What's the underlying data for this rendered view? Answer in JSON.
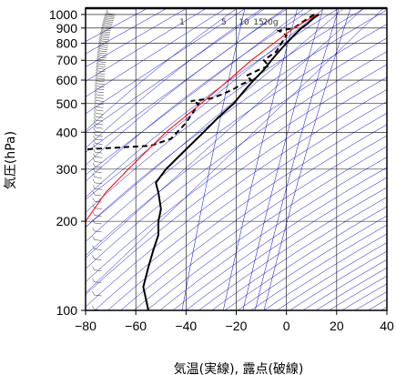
{
  "chart_data": {
    "type": "line",
    "title": "",
    "xlabel": "気温(実線), 露点(破線)",
    "ylabel": "気圧(hPa)",
    "xlim": [
      -80,
      40
    ],
    "ylim_pressure": [
      1050,
      100
    ],
    "y_scale": "log",
    "x_ticks": [
      "−80",
      "−60",
      "−40",
      "−20",
      "0",
      "20",
      "40"
    ],
    "x_tick_values": [
      -80,
      -60,
      -40,
      -20,
      0,
      20,
      40
    ],
    "y_ticks": [
      "100",
      "200",
      "300",
      "400",
      "500",
      "600",
      "700",
      "800",
      "900",
      "1000"
    ],
    "y_tick_values": [
      100,
      200,
      300,
      400,
      500,
      600,
      700,
      800,
      900,
      1000
    ],
    "mixing_ratio_labels": [
      "1",
      "5",
      "10",
      "15",
      "20g"
    ],
    "mixing_ratio_values": [
      1,
      5,
      10,
      15,
      20
    ],
    "grid": true,
    "colors": {
      "temperature": "#000000",
      "dewpoint": "#000000",
      "reference_line": "#ff0000",
      "adiabats": "#0000cc",
      "grid": "#000000"
    },
    "series": [
      {
        "role": "temperature",
        "points": [
          {
            "p": 1000,
            "t": 13
          },
          {
            "p": 975,
            "t": 11
          },
          {
            "p": 950,
            "t": 9.5
          },
          {
            "p": 925,
            "t": 8
          },
          {
            "p": 900,
            "t": 6
          },
          {
            "p": 850,
            "t": 3
          },
          {
            "p": 800,
            "t": 0
          },
          {
            "p": 750,
            "t": -3
          },
          {
            "p": 700,
            "t": -6
          },
          {
            "p": 650,
            "t": -9
          },
          {
            "p": 600,
            "t": -13
          },
          {
            "p": 550,
            "t": -17
          },
          {
            "p": 500,
            "t": -21
          },
          {
            "p": 450,
            "t": -27
          },
          {
            "p": 400,
            "t": -33
          },
          {
            "p": 350,
            "t": -40
          },
          {
            "p": 300,
            "t": -48
          },
          {
            "p": 270,
            "t": -52
          },
          {
            "p": 250,
            "t": -51
          },
          {
            "p": 220,
            "t": -50
          },
          {
            "p": 200,
            "t": -51
          },
          {
            "p": 180,
            "t": -51
          },
          {
            "p": 160,
            "t": -53
          },
          {
            "p": 140,
            "t": -55
          },
          {
            "p": 120,
            "t": -57
          },
          {
            "p": 100,
            "t": -55
          }
        ]
      },
      {
        "role": "dewpoint",
        "points": [
          {
            "p": 1000,
            "t": 11
          },
          {
            "p": 975,
            "t": 9
          },
          {
            "p": 950,
            "t": 7
          },
          {
            "p": 925,
            "t": 5
          },
          {
            "p": 900,
            "t": 3
          },
          {
            "p": 880,
            "t": -3
          },
          {
            "p": 850,
            "t": 0
          },
          {
            "p": 800,
            "t": -2
          },
          {
            "p": 750,
            "t": -4
          },
          {
            "p": 700,
            "t": -9
          },
          {
            "p": 670,
            "t": -7
          },
          {
            "p": 650,
            "t": -11
          },
          {
            "p": 620,
            "t": -16
          },
          {
            "p": 600,
            "t": -14
          },
          {
            "p": 580,
            "t": -18
          },
          {
            "p": 560,
            "t": -21
          },
          {
            "p": 540,
            "t": -25
          },
          {
            "p": 520,
            "t": -30
          },
          {
            "p": 510,
            "t": -38
          },
          {
            "p": 500,
            "t": -35
          },
          {
            "p": 470,
            "t": -37
          },
          {
            "p": 430,
            "t": -40
          },
          {
            "p": 380,
            "t": -46
          },
          {
            "p": 360,
            "t": -54
          },
          {
            "p": 350,
            "t": -80
          }
        ]
      },
      {
        "role": "reference_line",
        "points": [
          {
            "p": 1000,
            "t": 12
          },
          {
            "p": 900,
            "t": 3
          },
          {
            "p": 800,
            "t": -5
          },
          {
            "p": 700,
            "t": -14
          },
          {
            "p": 600,
            "t": -23
          },
          {
            "p": 500,
            "t": -34
          },
          {
            "p": 400,
            "t": -48
          },
          {
            "p": 300,
            "t": -63
          },
          {
            "p": 250,
            "t": -72
          },
          {
            "p": 200,
            "t": -80
          }
        ]
      }
    ]
  }
}
